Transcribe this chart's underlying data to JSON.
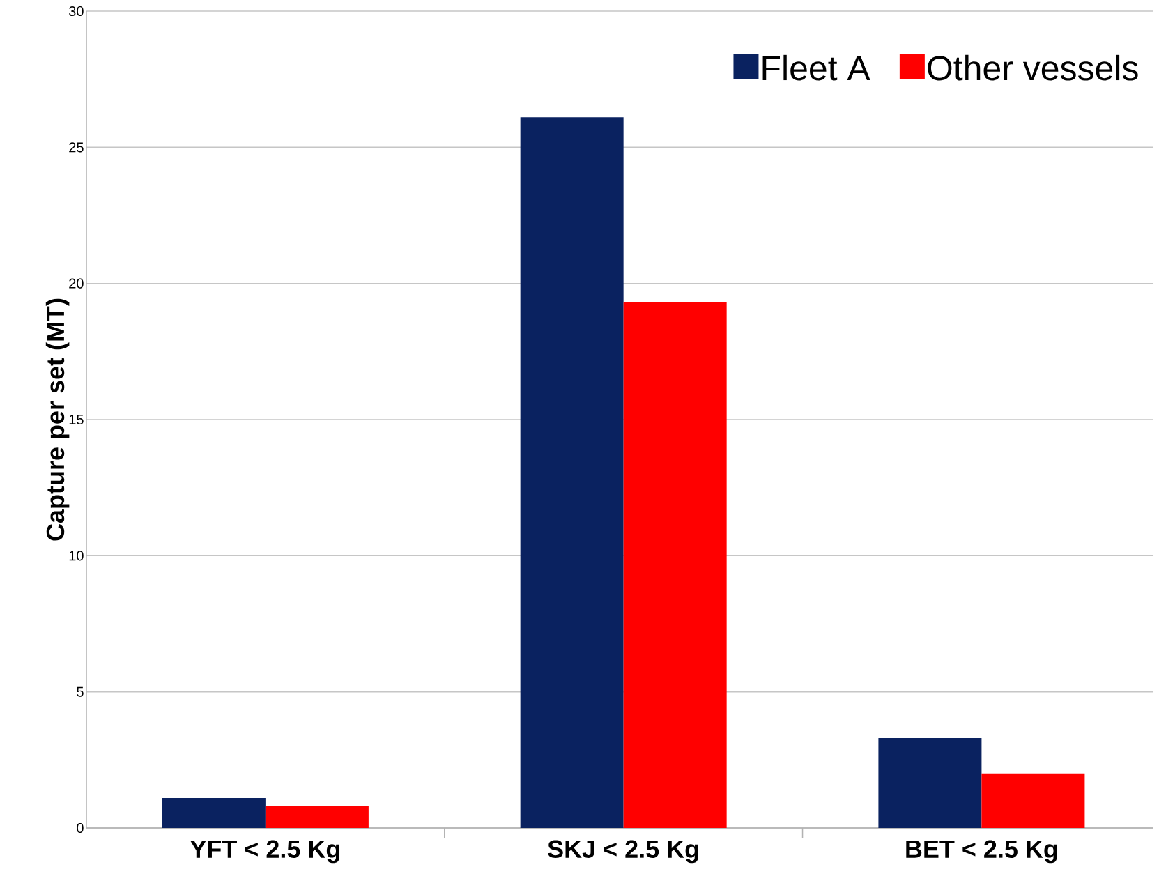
{
  "chart_data": {
    "type": "bar",
    "ylabel": "Capture per set (MT)",
    "categories": [
      "YFT < 2.5 Kg",
      "SKJ < 2.5 Kg",
      "BET < 2.5 Kg"
    ],
    "series": [
      {
        "name": "Fleet A",
        "color": "#0a2260",
        "values": [
          1.1,
          26.1,
          3.3
        ]
      },
      {
        "name": "Other vessels",
        "color": "#ff0000",
        "values": [
          0.8,
          19.3,
          2.0
        ]
      }
    ],
    "ylim": [
      0,
      30
    ],
    "yticks": [
      0,
      5,
      10,
      15,
      20,
      25,
      30
    ],
    "grid": "y",
    "legend": "top right"
  }
}
